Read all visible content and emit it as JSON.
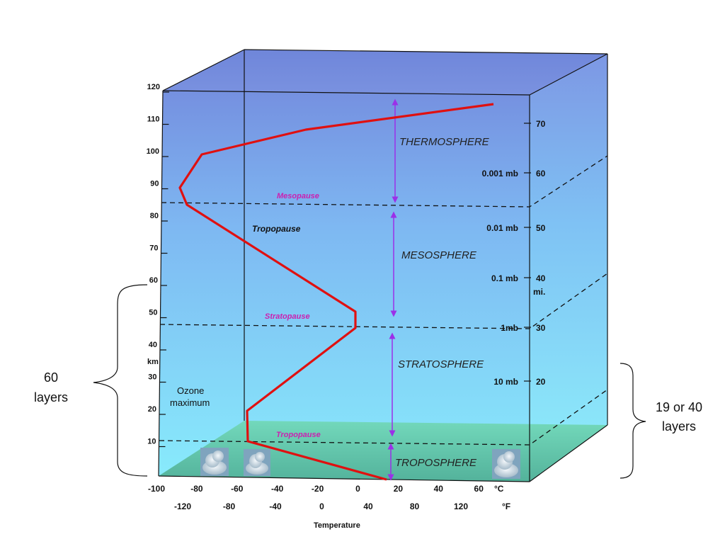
{
  "diagram": {
    "x_axis_title": "Temperature",
    "celsius_unit": "°C",
    "fahrenheit_unit": "°F",
    "celsius_ticks": [
      "-100",
      "-80",
      "-60",
      "-40",
      "-20",
      "0",
      "20",
      "40",
      "60"
    ],
    "fahrenheit_ticks": [
      "-120",
      "-80",
      "-40",
      "0",
      "40",
      "80",
      "120"
    ],
    "km_unit": "km",
    "km_ticks": [
      "120",
      "110",
      "100",
      "90",
      "80",
      "70",
      "60",
      "50",
      "40",
      "30",
      "20",
      "10"
    ],
    "mi_unit": "mi.",
    "mi_ticks": [
      "70",
      "60",
      "50",
      "40",
      "30",
      "20"
    ],
    "pressure_labels": [
      "0.001 mb",
      "0.01 mb",
      "0.1 mb",
      "1mb",
      "10 mb"
    ],
    "layers": [
      "THERMOSPHERE",
      "MESOSPHERE",
      "STRATOSPHERE",
      "TROPOSPHERE"
    ],
    "boundaries": {
      "mesopause": "Mesopause",
      "stratopause": "Stratopause",
      "tropopause_lower": "Tropopause",
      "tropopause_upper": "Tropopause"
    },
    "ozone": [
      "Ozone",
      "maximum"
    ],
    "left_bracket": [
      "60",
      "layers"
    ],
    "right_bracket": [
      "19 or 40",
      "layers"
    ],
    "colors": {
      "temperature_curve": "#e01010",
      "layer_arrows": "#9b30e8",
      "pause_labels": "#cc1fb0",
      "sky_top": "#7b96e2",
      "sky_bottom": "#88e8fc",
      "ground": "#5cc2a4"
    },
    "icons": [
      "cumulus-cloud-icon",
      "cumulus-cloud-icon",
      "cumulus-cloud-icon"
    ]
  }
}
